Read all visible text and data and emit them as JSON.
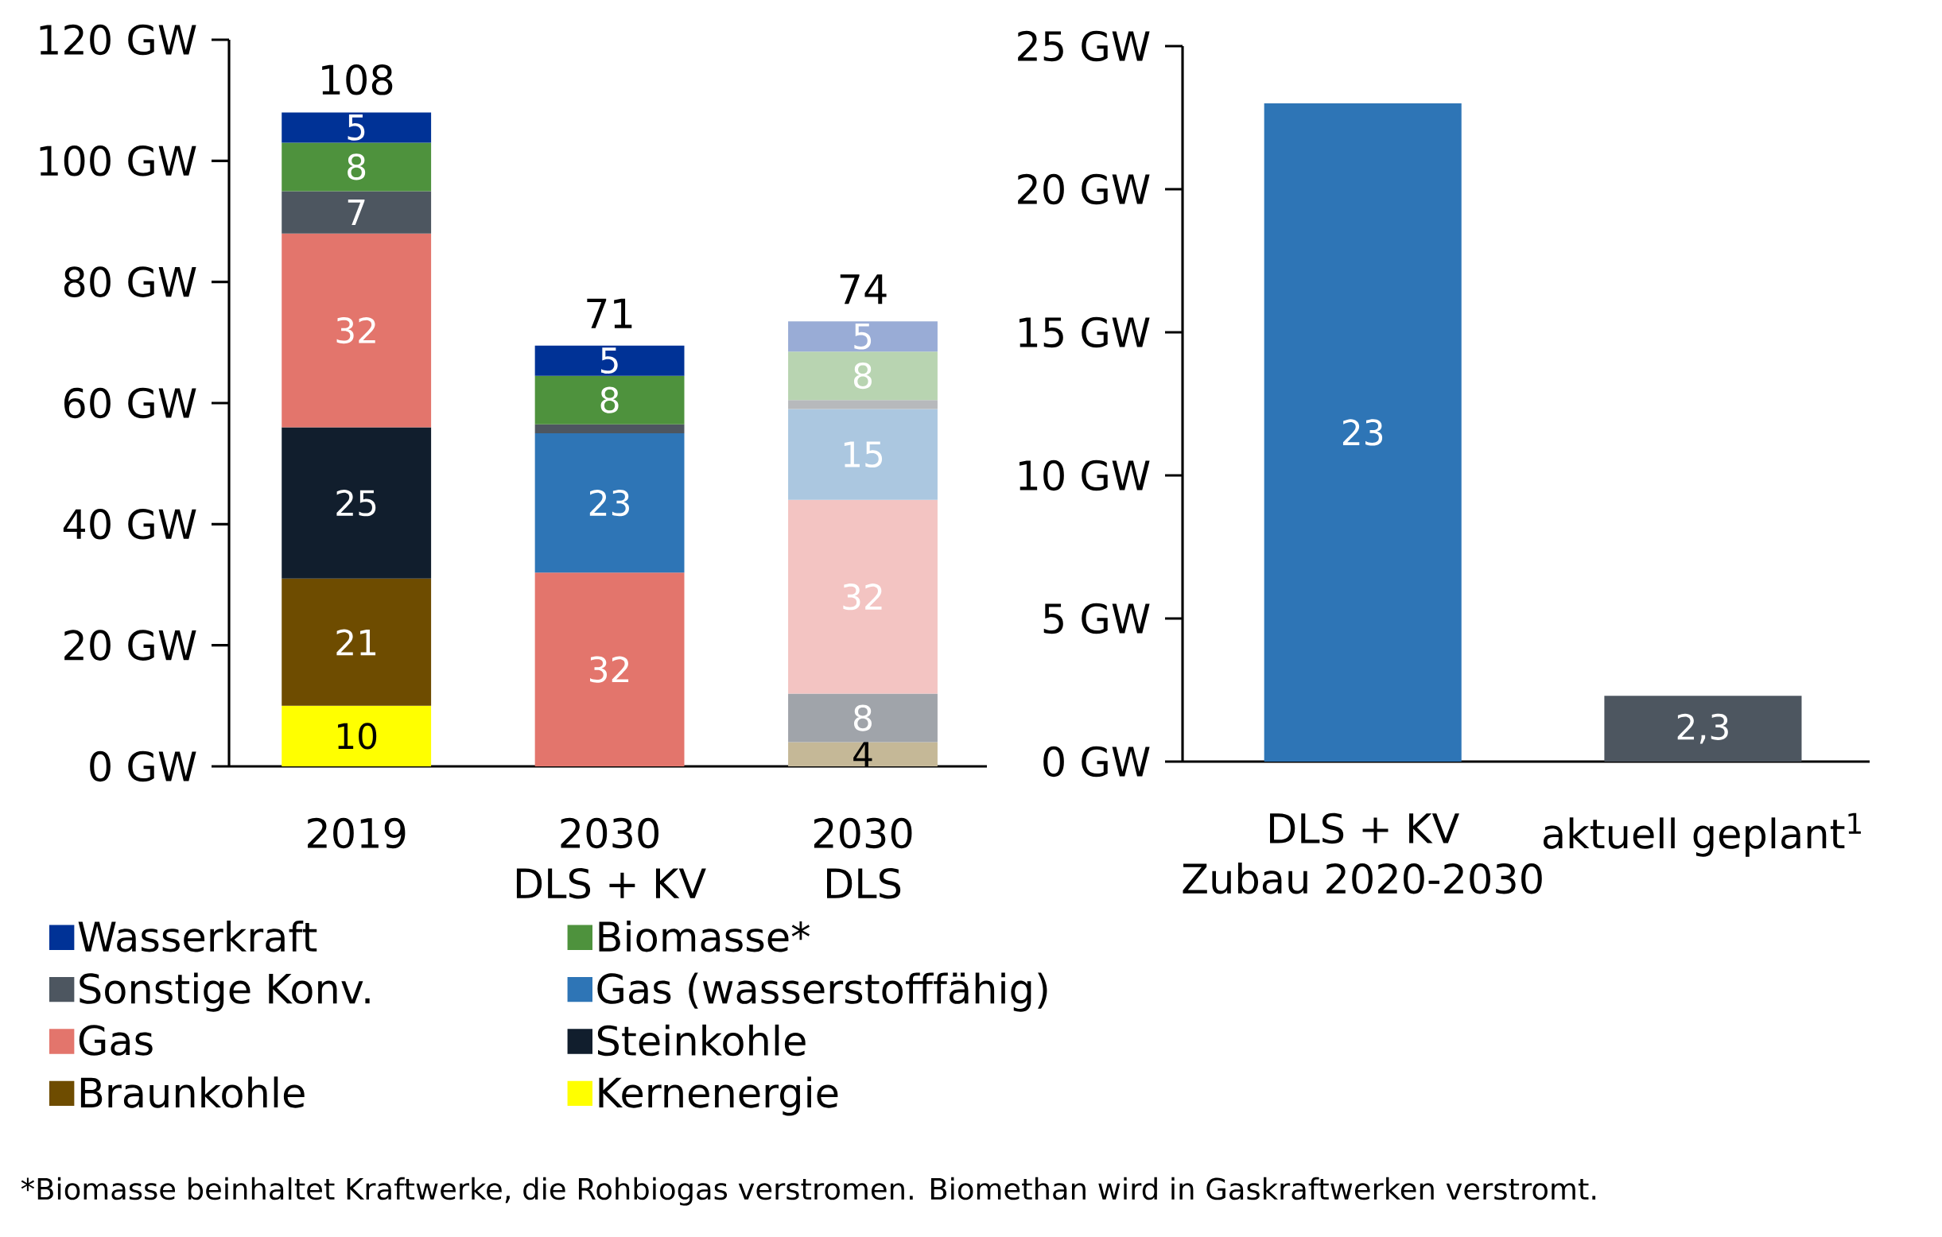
{
  "chart_data": [
    {
      "type": "bar",
      "stacked": true,
      "categories": [
        "2019",
        "2030\nDLS + KV",
        "2030\nDLS"
      ],
      "series": [
        {
          "name": "Kernenergie",
          "color": "#ffff00",
          "colors": [
            "#ffff00",
            "#ffff00",
            "#c5b897"
          ],
          "values": [
            10,
            null,
            4
          ],
          "value_labels": [
            "10",
            null,
            "4"
          ]
        },
        {
          "name": "Braunkohle",
          "color": "#6e4c00",
          "colors": [
            "#6e4c00",
            "#6e4c00",
            "#a0a4aa"
          ],
          "values": [
            21,
            null,
            8
          ],
          "value_labels": [
            "21",
            null,
            "8"
          ]
        },
        {
          "name": "Steinkohle",
          "color": "#111e2d",
          "colors": [
            "#111e2d",
            "#111e2d",
            "#a0a4aa"
          ],
          "values": [
            25,
            null,
            null
          ],
          "value_labels": [
            "25",
            null,
            null
          ]
        },
        {
          "name": "Gas",
          "color": "#e3756c",
          "colors": [
            "#e3756c",
            "#e3756c",
            "#f3c4c2"
          ],
          "values": [
            32,
            32,
            32
          ],
          "value_labels": [
            "32",
            "32",
            "32"
          ]
        },
        {
          "name": "Gas (wasserstofffähig)",
          "color": "#2e75b6",
          "colors": [
            "#2e75b6",
            "#2e75b6",
            "#abc7e0"
          ],
          "values": [
            null,
            23,
            15
          ],
          "value_labels": [
            null,
            "23",
            "15"
          ]
        },
        {
          "name": "Sonstige Konv.",
          "color": "#4d5660",
          "colors": [
            "#4d5660",
            "#4d5660",
            "#b7b9bc"
          ],
          "values": [
            7,
            1.5,
            1.5
          ],
          "value_labels": [
            "7",
            null,
            null
          ]
        },
        {
          "name": "Biomasse*",
          "color": "#4e923d",
          "colors": [
            "#4e923d",
            "#4e923d",
            "#b8d4b1"
          ],
          "values": [
            8,
            8,
            8
          ],
          "value_labels": [
            "8",
            "8",
            "8"
          ]
        },
        {
          "name": "Wasserkraft",
          "color": "#003296",
          "colors": [
            "#003296",
            "#003296",
            "#99acd6"
          ],
          "values": [
            5,
            5,
            5
          ],
          "value_labels": [
            "5",
            "5",
            "5"
          ]
        }
      ],
      "totals": [
        "108",
        "71",
        "74"
      ],
      "ylim": [
        0,
        120
      ],
      "yticks": [
        {
          "value": 0,
          "label": "0 GW"
        },
        {
          "value": 20,
          "label": "20 GW"
        },
        {
          "value": 40,
          "label": "40 GW"
        },
        {
          "value": 60,
          "label": "60 GW"
        },
        {
          "value": 80,
          "label": "80 GW"
        },
        {
          "value": 100,
          "label": "100 GW"
        },
        {
          "value": 120,
          "label": "120 GW"
        }
      ],
      "legend": "bottom",
      "annotations": [
        "*Biomasse beinhaltet Kraftwerke, die Rohbiogas verstromen. Biomethan wird in Gaskraftwerken verstromt."
      ]
    },
    {
      "type": "bar",
      "categories": [
        "DLS + KV\nZubau 2020-2030",
        "aktuell geplant$^{1}$"
      ],
      "values": [
        23,
        2.3
      ],
      "colors": [
        "#2e75b6",
        "#4d5660"
      ],
      "value_labels": [
        "23",
        "2,3"
      ],
      "ylim": [
        0,
        25
      ],
      "yticks": [
        {
          "value": 0,
          "label": "0 GW"
        },
        {
          "value": 5,
          "label": "5 GW"
        },
        {
          "value": 10,
          "label": "10 GW"
        },
        {
          "value": 15,
          "label": "15 GW"
        },
        {
          "value": 20,
          "label": "20 GW"
        },
        {
          "value": 25,
          "label": "25 GW"
        }
      ]
    }
  ]
}
